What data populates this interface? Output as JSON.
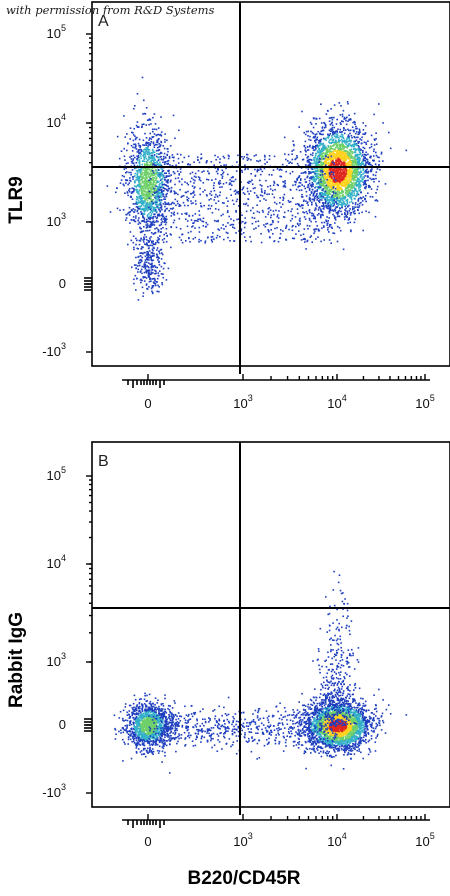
{
  "watermark": "with permission from R&D Systems",
  "colors": {
    "low": "#1f3fbf",
    "mid": "#33b0c8",
    "midhigh": "#6fd06a",
    "high": "#ffd21e",
    "peak": "#e0281e"
  },
  "chart_data": [
    {
      "type": "scatter",
      "panel_label": "A",
      "xlabel": "",
      "ylabel": "TLR9",
      "x_scale": "biexponential",
      "y_scale": "biexponential",
      "x_ticks": [
        "0",
        "10^3",
        "10^4",
        "10^5"
      ],
      "y_ticks": [
        "10^5",
        "10^4",
        "10^3",
        "0",
        "-10^3"
      ],
      "quadrant_gate": {
        "x": 800,
        "y": 3500
      },
      "populations": [
        {
          "name": "cluster-left",
          "x_center": 0,
          "y_center": 2600,
          "relative_density": "medium"
        },
        {
          "name": "cluster-right",
          "x_center": 10000,
          "y_center": 3400,
          "relative_density": "high"
        },
        {
          "name": "bridge",
          "x_range": [
            0,
            10000
          ],
          "y_range": [
            300,
            5000
          ],
          "relative_density": "low"
        }
      ],
      "grid": false
    },
    {
      "type": "scatter",
      "panel_label": "B",
      "xlabel": "B220/CD45R",
      "ylabel": "Rabbit IgG",
      "x_scale": "biexponential",
      "y_scale": "biexponential",
      "x_ticks": [
        "0",
        "10^3",
        "10^4",
        "10^5"
      ],
      "y_ticks": [
        "10^5",
        "10^4",
        "10^3",
        "0",
        "-10^3"
      ],
      "quadrant_gate": {
        "x": 800,
        "y": 3500
      },
      "populations": [
        {
          "name": "cluster-left",
          "x_center": 0,
          "y_center": 0,
          "relative_density": "medium"
        },
        {
          "name": "cluster-right",
          "x_center": 10000,
          "y_center": 0,
          "relative_density": "high"
        },
        {
          "name": "bridge",
          "x_range": [
            0,
            10000
          ],
          "y_range": [
            -300,
            300
          ],
          "relative_density": "low"
        }
      ],
      "grid": false
    }
  ]
}
